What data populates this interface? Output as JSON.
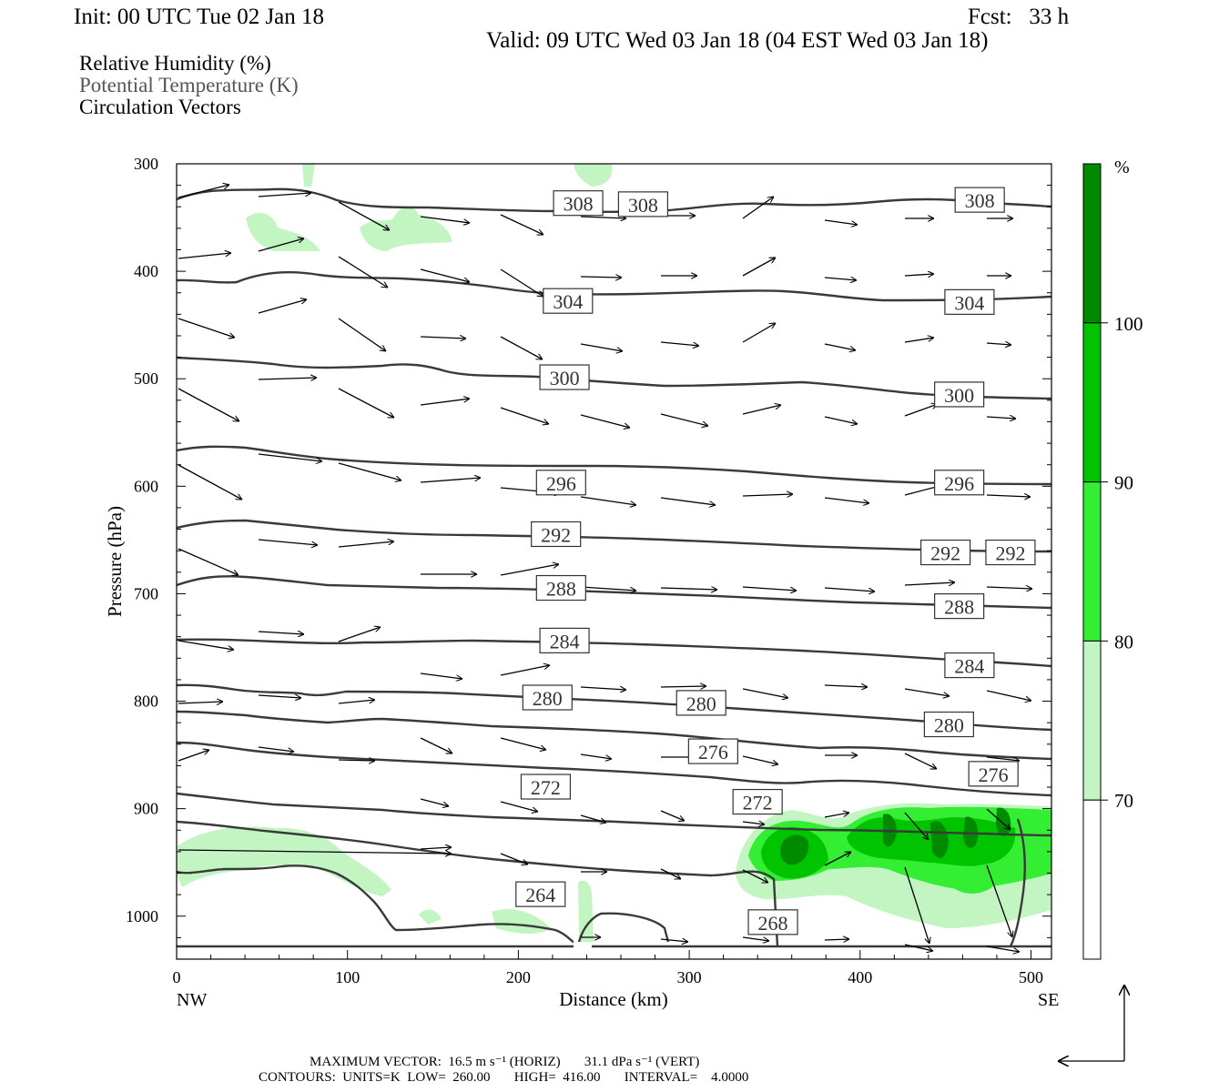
{
  "header": {
    "init": "Init: 00 UTC Tue 02 Jan 18",
    "fcst": "Fcst:   33 h",
    "valid": "Valid: 09 UTC Wed 03 Jan 18 (04 EST Wed 03 Jan 18)",
    "fields": [
      "Relative Humidity (%)",
      "Potential Temperature (K)",
      "Circulation Vectors"
    ]
  },
  "footer": {
    "max_vector": "MAXIMUM VECTOR:  16.5 m s⁻¹ (HORIZ)       31.1 dPa s⁻¹ (VERT)",
    "contours": "CONTOURS:  UNITS=K  LOW=  260.00       HIGH=  416.00       INTERVAL=    4.0000"
  },
  "colors": {
    "rh_70": "#c2f5c2",
    "rh_80": "#33ee33",
    "rh_90": "#00c400",
    "rh_100": "#008a00",
    "isentrope": "#3a3a3a",
    "vector": "#000000"
  },
  "chart_data": {
    "type": "cross-section",
    "xlabel": "Distance (km)",
    "ylabel": "Pressure (hPa)",
    "xlim": [
      0,
      512
    ],
    "ylim": [
      300,
      1040
    ],
    "x_ticks": [
      0,
      100,
      200,
      300,
      400,
      500
    ],
    "y_ticks": [
      300,
      400,
      500,
      600,
      700,
      800,
      900,
      1000
    ],
    "endpoints": {
      "left": "NW",
      "right": "SE"
    },
    "colorbar": {
      "unit": "%",
      "levels": [
        70,
        80,
        90,
        100
      ]
    },
    "contour_labels": [
      {
        "value": "308",
        "x": 235,
        "p": 337
      },
      {
        "value": "308",
        "x": 273,
        "p": 338
      },
      {
        "value": "308",
        "x": 470,
        "p": 334
      },
      {
        "value": "304",
        "x": 229,
        "p": 428
      },
      {
        "value": "304",
        "x": 464,
        "p": 429
      },
      {
        "value": "300",
        "x": 227,
        "p": 499
      },
      {
        "value": "300",
        "x": 458,
        "p": 515
      },
      {
        "value": "296",
        "x": 225,
        "p": 597
      },
      {
        "value": "296",
        "x": 458,
        "p": 597
      },
      {
        "value": "292",
        "x": 222,
        "p": 645
      },
      {
        "value": "292",
        "x": 450,
        "p": 662
      },
      {
        "value": "292",
        "x": 488,
        "p": 662
      },
      {
        "value": "288",
        "x": 225,
        "p": 695
      },
      {
        "value": "288",
        "x": 458,
        "p": 712
      },
      {
        "value": "284",
        "x": 227,
        "p": 744
      },
      {
        "value": "284",
        "x": 464,
        "p": 767
      },
      {
        "value": "280",
        "x": 217,
        "p": 797
      },
      {
        "value": "280",
        "x": 307,
        "p": 802
      },
      {
        "value": "280",
        "x": 452,
        "p": 822
      },
      {
        "value": "276",
        "x": 314,
        "p": 847
      },
      {
        "value": "276",
        "x": 478,
        "p": 868
      },
      {
        "value": "272",
        "x": 216,
        "p": 880
      },
      {
        "value": "272",
        "x": 340,
        "p": 894
      },
      {
        "value": "268",
        "x": 349,
        "p": 1006
      },
      {
        "value": "264",
        "x": 213,
        "p": 980
      }
    ]
  }
}
